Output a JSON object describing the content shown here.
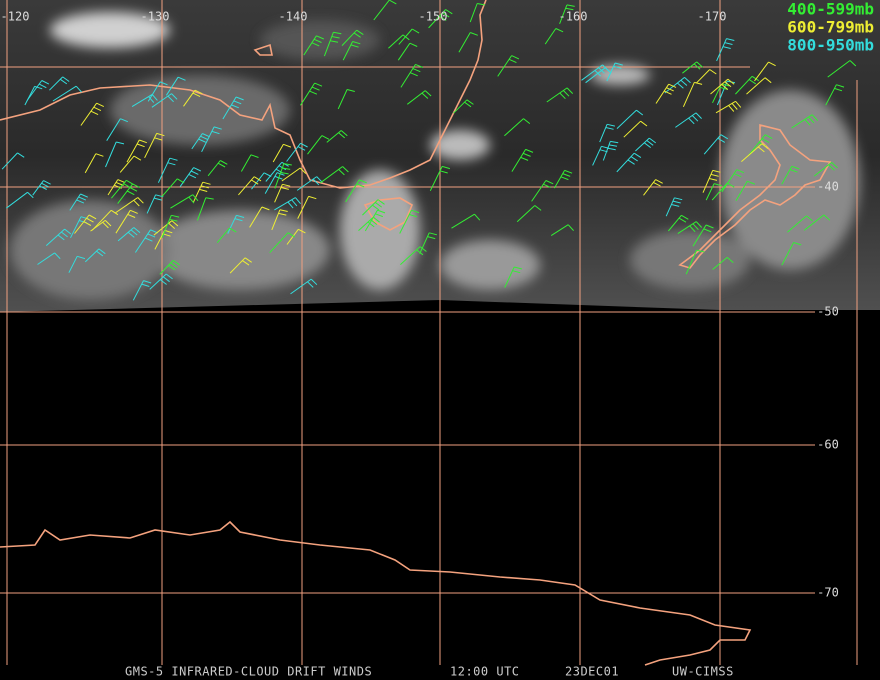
{
  "map": {
    "longitude_labels": [
      "-120",
      "-130",
      "-140",
      "-150",
      "-160",
      "-170"
    ],
    "latitude_labels": [
      "-40",
      "-50",
      "-60",
      "-70"
    ],
    "legend": [
      {
        "label": "400-599mb",
        "color": "#33ee33"
      },
      {
        "label": "600-799mb",
        "color": "#eeee33"
      },
      {
        "label": "800-950mb",
        "color": "#33dddd"
      }
    ],
    "footer": [
      "GMS-5 INFRARED-CLOUD DRIFT WINDS",
      "12:00 UTC",
      "23DEC01",
      "UW-CIMSS"
    ]
  }
}
